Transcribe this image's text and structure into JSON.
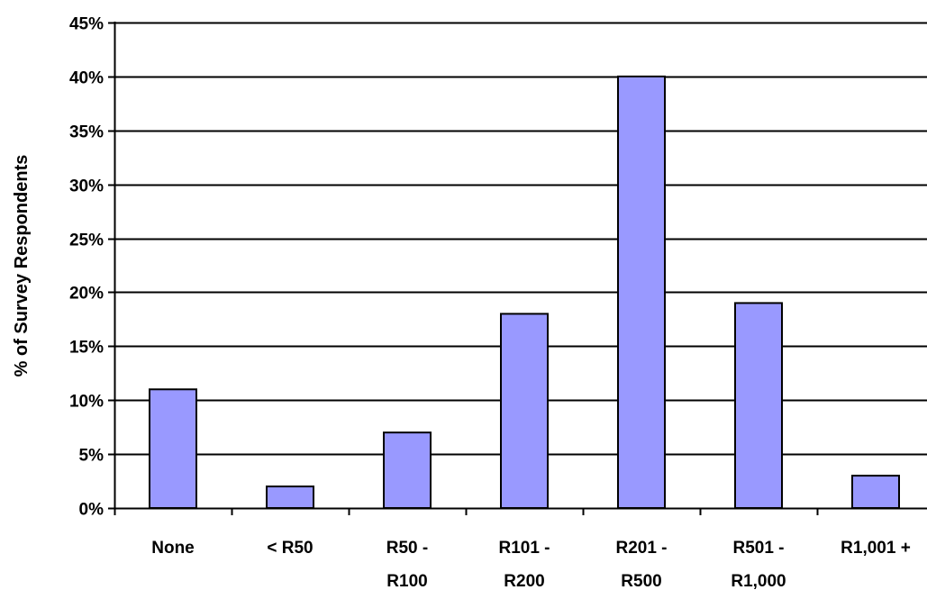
{
  "chart_data": {
    "type": "bar",
    "title": "",
    "xlabel": "",
    "ylabel": "% of Survey Respondents",
    "categories": [
      [
        "None"
      ],
      [
        "< R50"
      ],
      [
        "R50 -",
        "R100"
      ],
      [
        "R101 -",
        "R200"
      ],
      [
        "R201 -",
        "R500"
      ],
      [
        "R501 -",
        "R1,000"
      ],
      [
        "R1,001 +"
      ]
    ],
    "values": [
      11,
      2,
      7,
      18,
      40,
      19,
      3
    ],
    "ylim": [
      0,
      45
    ],
    "ytick_step": 5,
    "ytick_suffix": "%",
    "grid": true,
    "legend": "none",
    "colors": {
      "bar_fill": "#9999ff",
      "bar_stroke": "#000000",
      "grid": "#000000",
      "axis": "#000000",
      "background": "#ffffff"
    }
  }
}
